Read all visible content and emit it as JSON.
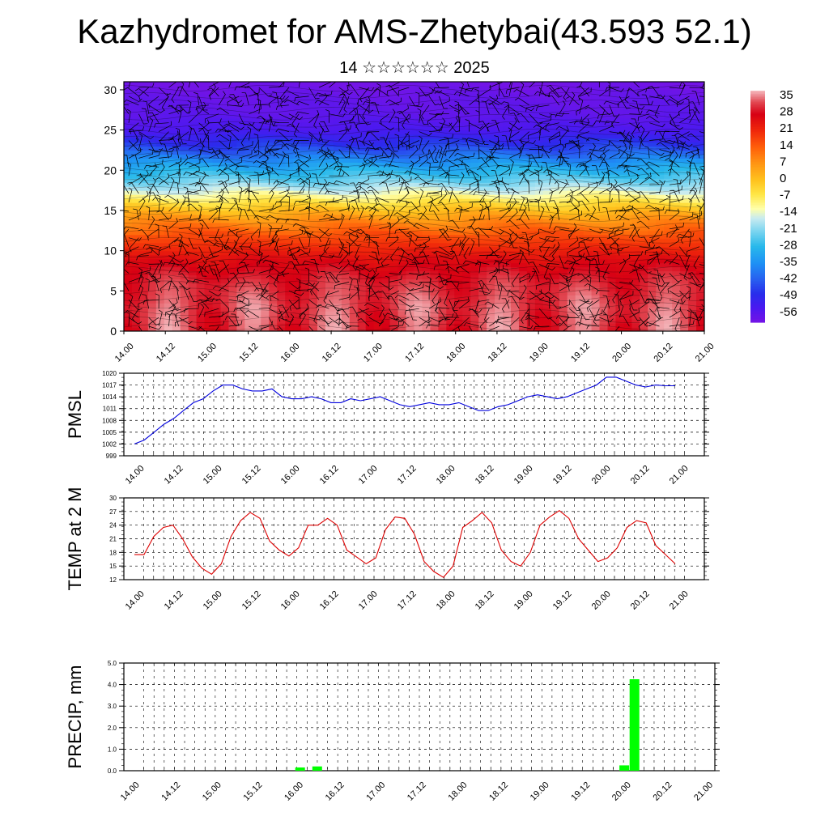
{
  "title": "Kazhydromet for AMS-Zhetybai(43.593 52.1)",
  "subtitle": "14 ☆☆☆☆☆☆ 2025",
  "chart_data": [
    {
      "type": "heatmap",
      "name": "vertical cross-section of temperature with wind barbs",
      "x_ticks": [
        "14.00",
        "14.12",
        "15.00",
        "15.12",
        "16.00",
        "16.12",
        "17.00",
        "17.12",
        "18.00",
        "18.12",
        "19.00",
        "19.12",
        "20.00",
        "20.12",
        "21.00"
      ],
      "y_ticks": [
        0,
        5,
        10,
        15,
        20,
        25,
        30
      ],
      "ylim": [
        0,
        31
      ],
      "colorbar_labels": [
        "35",
        "28",
        "21",
        "14",
        "7",
        "0",
        "-7",
        "-14",
        "-21",
        "-28",
        "-35",
        "-42",
        "-49",
        "-56"
      ],
      "colorbar_range": [
        -60,
        38
      ],
      "temperature_profile": [
        [
          0,
          32
        ],
        [
          3,
          33
        ],
        [
          6,
          31
        ],
        [
          9,
          26
        ],
        [
          12,
          16
        ],
        [
          14,
          7
        ],
        [
          15.5,
          -2
        ],
        [
          17,
          -12
        ],
        [
          19,
          -24
        ],
        [
          21,
          -34
        ],
        [
          23,
          -46
        ],
        [
          25,
          -54
        ],
        [
          27,
          -57
        ],
        [
          29,
          -58
        ],
        [
          31,
          -60
        ]
      ],
      "diurnal_amplitude_low_levels": 5
    },
    {
      "type": "line",
      "ylabel": "PMSL",
      "x_ticks": [
        "14.00",
        "14.12",
        "15.00",
        "15.12",
        "16.00",
        "16.12",
        "17.00",
        "17.12",
        "18.00",
        "18.12",
        "19.00",
        "19.12",
        "20.00",
        "20.12",
        "21.00"
      ],
      "y_ticks": [
        999,
        1002,
        1005,
        1008,
        1011,
        1014,
        1017,
        1020
      ],
      "ylim": [
        999,
        1020
      ],
      "series": [
        {
          "color": "#0000dd",
          "values": [
            1002,
            1003,
            1005,
            1007,
            1008.5,
            1010.5,
            1012.5,
            1013.5,
            1015.5,
            1017,
            1017,
            1016,
            1015.5,
            1015.5,
            1016,
            1014,
            1013.5,
            1013.5,
            1014,
            1013.5,
            1012.5,
            1012.5,
            1013.5,
            1013,
            1013.5,
            1014,
            1013,
            1012,
            1011.5,
            1012,
            1012.5,
            1012,
            1012,
            1012.5,
            1011.5,
            1010.5,
            1010.5,
            1011.5,
            1012,
            1013,
            1014,
            1014.5,
            1014,
            1013.5,
            1014,
            1015,
            1016,
            1017,
            1019,
            1019,
            1018,
            1017,
            1016.5,
            1017,
            1016.8,
            1016.8
          ]
        }
      ]
    },
    {
      "type": "line",
      "ylabel": "TEMP at 2 M",
      "x_ticks": [
        "14.00",
        "14.12",
        "15.00",
        "15.12",
        "16.00",
        "16.12",
        "17.00",
        "17.12",
        "18.00",
        "18.12",
        "19.00",
        "19.12",
        "20.00",
        "20.12",
        "21.00"
      ],
      "y_ticks": [
        12,
        15,
        18,
        21,
        24,
        27,
        30
      ],
      "ylim": [
        12,
        30
      ],
      "series": [
        {
          "color": "#dd0000",
          "values": [
            17.5,
            17.5,
            21.5,
            23.5,
            24,
            21,
            17,
            14.5,
            13.2,
            15.5,
            21.5,
            25,
            26.8,
            25.5,
            20.5,
            18.5,
            17.2,
            19,
            24,
            24,
            25.5,
            24,
            18.5,
            17,
            15.5,
            16.8,
            23,
            25.8,
            25.5,
            22,
            16,
            13.8,
            12.5,
            15,
            23.5,
            25,
            26.8,
            24.5,
            18.5,
            16,
            15,
            18,
            24,
            25.8,
            27.2,
            25.5,
            21,
            18.5,
            16,
            16.8,
            19,
            23.5,
            25,
            24.5,
            19.5,
            17.5,
            15.5
          ]
        }
      ]
    },
    {
      "type": "bar",
      "ylabel": "PRECIP, mm",
      "x_ticks": [
        "14.00",
        "14.12",
        "15.00",
        "15.12",
        "16.00",
        "16.12",
        "17.00",
        "17.12",
        "18.00",
        "18.12",
        "19.00",
        "19.12",
        "20.00",
        "20.12",
        "21.00"
      ],
      "y_ticks": [
        "0.0",
        "1.0",
        "2.0",
        "3.0",
        "4.0",
        "5.0"
      ],
      "ylim": [
        0,
        5
      ],
      "bar_color": "#00ff00",
      "bars": [
        {
          "x": 16.083,
          "value": 0.15
        },
        {
          "x": 16.292,
          "value": 0.2
        },
        {
          "x": 20.042,
          "value": 0.25
        },
        {
          "x": 20.167,
          "value": 4.25
        }
      ]
    }
  ]
}
